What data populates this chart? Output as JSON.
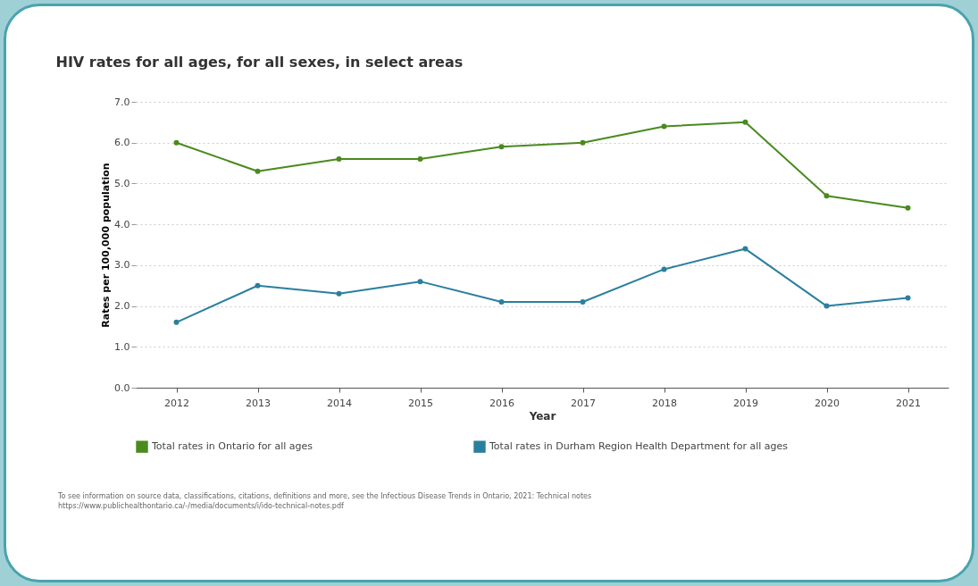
{
  "chart_data": {
    "type": "line",
    "title": "HIV rates  for all ages, for all sexes, in select areas",
    "xlabel": "Year",
    "ylabel": "Rates per 100,000 population",
    "categories": [
      "2012",
      "2013",
      "2014",
      "2015",
      "2016",
      "2017",
      "2018",
      "2019",
      "2020",
      "2021"
    ],
    "series": [
      {
        "name": "Total rates in Ontario for all ages",
        "color": "#4a8a1e",
        "values": [
          6.0,
          5.3,
          5.6,
          5.6,
          5.9,
          6.0,
          6.4,
          6.5,
          4.7,
          4.4
        ]
      },
      {
        "name": "Total rates in Durham Region Health Department for all ages",
        "color": "#2b7f9e",
        "values": [
          1.6,
          2.5,
          2.3,
          2.6,
          2.1,
          2.1,
          2.9,
          3.4,
          2.0,
          2.2
        ]
      }
    ],
    "ylim": [
      0,
      7
    ],
    "yticks": [
      {
        "value": 0,
        "label": "0.0"
      },
      {
        "value": 1,
        "label": "1.0"
      },
      {
        "value": 2,
        "label": "2.0"
      },
      {
        "value": 3,
        "label": "3.0"
      },
      {
        "value": 4,
        "label": "4.0"
      },
      {
        "value": 5,
        "label": "5.0"
      },
      {
        "value": 6,
        "label": "6.0"
      },
      {
        "value": 7,
        "label": "7.0"
      }
    ],
    "grid": "y",
    "legend": "bottom",
    "marker": "circle",
    "line_style": "solid",
    "annotations": [
      "To see information on source data, classifications, citations, definitions and more, see the Infectious Disease Trends in Ontario, 2021: Technical notes",
      "https://www.publichealthontario.ca/-/media/documents/i/ido-technical-notes.pdf"
    ]
  }
}
